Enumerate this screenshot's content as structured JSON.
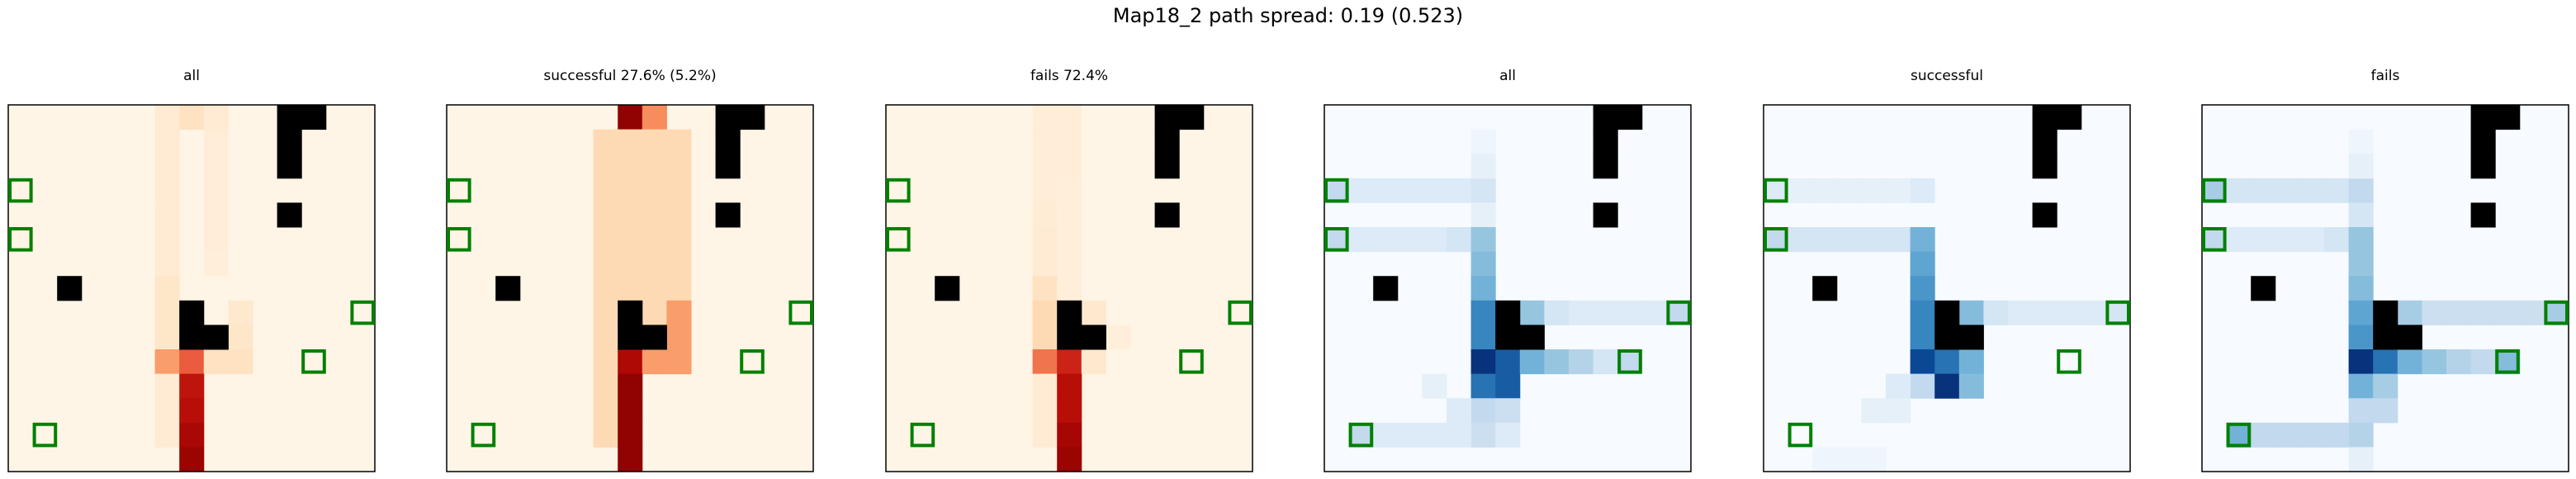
{
  "title": "Map18_2 path spread: 0.19 (0.523)",
  "grid": {
    "cols": 15,
    "rows": 15
  },
  "obstacles": [
    [
      11,
      0
    ],
    [
      12,
      0
    ],
    [
      11,
      1
    ],
    [
      11,
      2
    ],
    [
      11,
      4
    ],
    [
      2,
      7
    ],
    [
      7,
      8
    ],
    [
      7,
      9
    ],
    [
      8,
      9
    ]
  ],
  "goals": [
    [
      0,
      3
    ],
    [
      0,
      5
    ],
    [
      14,
      8
    ],
    [
      12,
      10
    ],
    [
      1,
      13
    ]
  ],
  "colors": {
    "goal_outline": "#008000",
    "obstacle": "#000000",
    "frame": "#000000"
  },
  "chart_data": [
    {
      "type": "heatmap",
      "title": "all",
      "cmap": "OrRd",
      "cells": [
        [
          6,
          0,
          0.08
        ],
        [
          7,
          0,
          0.15
        ],
        [
          8,
          0,
          0.08
        ],
        [
          6,
          1,
          0.08
        ],
        [
          8,
          1,
          0.06
        ],
        [
          6,
          2,
          0.08
        ],
        [
          8,
          2,
          0.06
        ],
        [
          6,
          3,
          0.08
        ],
        [
          8,
          3,
          0.06
        ],
        [
          6,
          4,
          0.08
        ],
        [
          8,
          4,
          0.06
        ],
        [
          6,
          5,
          0.08
        ],
        [
          8,
          5,
          0.06
        ],
        [
          6,
          6,
          0.08
        ],
        [
          8,
          6,
          0.05
        ],
        [
          6,
          7,
          0.12
        ],
        [
          6,
          8,
          0.12
        ],
        [
          9,
          8,
          0.1
        ],
        [
          6,
          9,
          0.12
        ],
        [
          9,
          9,
          0.12
        ],
        [
          6,
          10,
          0.45
        ],
        [
          7,
          10,
          0.6
        ],
        [
          8,
          10,
          0.15
        ],
        [
          9,
          10,
          0.15
        ],
        [
          6,
          11,
          0.08
        ],
        [
          7,
          11,
          0.8
        ],
        [
          6,
          12,
          0.08
        ],
        [
          7,
          12,
          0.82
        ],
        [
          6,
          13,
          0.08
        ],
        [
          7,
          13,
          0.87
        ],
        [
          7,
          14,
          0.92
        ]
      ]
    },
    {
      "type": "heatmap",
      "title": "successful 27.6% (5.2%)",
      "cmap": "OrRd",
      "cells": [
        [
          7,
          0,
          0.95
        ],
        [
          8,
          0,
          0.5
        ],
        [
          6,
          1,
          0.2
        ],
        [
          7,
          1,
          0.2
        ],
        [
          8,
          1,
          0.2
        ],
        [
          9,
          1,
          0.2
        ],
        [
          6,
          2,
          0.2
        ],
        [
          7,
          2,
          0.2
        ],
        [
          8,
          2,
          0.2
        ],
        [
          9,
          2,
          0.2
        ],
        [
          6,
          3,
          0.2
        ],
        [
          7,
          3,
          0.2
        ],
        [
          8,
          3,
          0.2
        ],
        [
          9,
          3,
          0.2
        ],
        [
          6,
          4,
          0.2
        ],
        [
          7,
          4,
          0.2
        ],
        [
          8,
          4,
          0.2
        ],
        [
          9,
          4,
          0.2
        ],
        [
          6,
          5,
          0.2
        ],
        [
          7,
          5,
          0.2
        ],
        [
          8,
          5,
          0.2
        ],
        [
          9,
          5,
          0.2
        ],
        [
          6,
          6,
          0.2
        ],
        [
          7,
          6,
          0.2
        ],
        [
          8,
          6,
          0.2
        ],
        [
          9,
          6,
          0.2
        ],
        [
          6,
          7,
          0.2
        ],
        [
          7,
          7,
          0.2
        ],
        [
          8,
          7,
          0.2
        ],
        [
          9,
          7,
          0.2
        ],
        [
          6,
          8,
          0.2
        ],
        [
          8,
          8,
          0.2
        ],
        [
          9,
          8,
          0.45
        ],
        [
          6,
          9,
          0.2
        ],
        [
          9,
          9,
          0.45
        ],
        [
          6,
          10,
          0.2
        ],
        [
          7,
          10,
          0.85
        ],
        [
          8,
          10,
          0.45
        ],
        [
          9,
          10,
          0.45
        ],
        [
          6,
          11,
          0.2
        ],
        [
          7,
          11,
          0.95
        ],
        [
          6,
          12,
          0.2
        ],
        [
          7,
          12,
          0.95
        ],
        [
          6,
          13,
          0.2
        ],
        [
          7,
          13,
          0.95
        ],
        [
          7,
          14,
          0.95
        ]
      ]
    },
    {
      "type": "heatmap",
      "title": "fails 72.4%",
      "cmap": "OrRd",
      "cells": [
        [
          6,
          0,
          0.06
        ],
        [
          7,
          0,
          0.06
        ],
        [
          6,
          1,
          0.06
        ],
        [
          7,
          1,
          0.06
        ],
        [
          6,
          2,
          0.06
        ],
        [
          7,
          2,
          0.06
        ],
        [
          6,
          3,
          0.06
        ],
        [
          7,
          3,
          0.05
        ],
        [
          6,
          4,
          0.07
        ],
        [
          7,
          4,
          0.05
        ],
        [
          6,
          5,
          0.08
        ],
        [
          7,
          5,
          0.05
        ],
        [
          6,
          6,
          0.08
        ],
        [
          7,
          6,
          0.05
        ],
        [
          6,
          7,
          0.15
        ],
        [
          7,
          7,
          0.05
        ],
        [
          6,
          8,
          0.2
        ],
        [
          8,
          8,
          0.1
        ],
        [
          6,
          9,
          0.2
        ],
        [
          9,
          9,
          0.05
        ],
        [
          6,
          10,
          0.55
        ],
        [
          7,
          10,
          0.75
        ],
        [
          8,
          10,
          0.1
        ],
        [
          6,
          11,
          0.08
        ],
        [
          7,
          11,
          0.82
        ],
        [
          6,
          12,
          0.08
        ],
        [
          7,
          12,
          0.82
        ],
        [
          6,
          13,
          0.08
        ],
        [
          7,
          13,
          0.88
        ],
        [
          7,
          14,
          0.92
        ]
      ]
    },
    {
      "type": "heatmap",
      "title": "all",
      "cmap": "Blues",
      "cells": [
        [
          0,
          3,
          0.3
        ],
        [
          1,
          3,
          0.15
        ],
        [
          2,
          3,
          0.15
        ],
        [
          3,
          3,
          0.15
        ],
        [
          4,
          3,
          0.15
        ],
        [
          5,
          3,
          0.15
        ],
        [
          6,
          3,
          0.2
        ],
        [
          0,
          5,
          0.3
        ],
        [
          1,
          5,
          0.15
        ],
        [
          2,
          5,
          0.15
        ],
        [
          3,
          5,
          0.15
        ],
        [
          4,
          5,
          0.15
        ],
        [
          5,
          5,
          0.2
        ],
        [
          6,
          1,
          0.05
        ],
        [
          6,
          2,
          0.1
        ],
        [
          6,
          4,
          0.1
        ],
        [
          6,
          5,
          0.45
        ],
        [
          6,
          6,
          0.5
        ],
        [
          6,
          7,
          0.55
        ],
        [
          6,
          8,
          0.7
        ],
        [
          6,
          9,
          0.7
        ],
        [
          6,
          10,
          0.95
        ],
        [
          6,
          11,
          0.75
        ],
        [
          6,
          12,
          0.3
        ],
        [
          6,
          13,
          0.25
        ],
        [
          7,
          10,
          0.8
        ],
        [
          8,
          10,
          0.55
        ],
        [
          9,
          10,
          0.45
        ],
        [
          10,
          10,
          0.35
        ],
        [
          11,
          10,
          0.2
        ],
        [
          12,
          10,
          0.3
        ],
        [
          7,
          11,
          0.8
        ],
        [
          7,
          12,
          0.25
        ],
        [
          7,
          13,
          0.15
        ],
        [
          8,
          8,
          0.45
        ],
        [
          9,
          8,
          0.2
        ],
        [
          10,
          8,
          0.15
        ],
        [
          11,
          8,
          0.15
        ],
        [
          12,
          8,
          0.15
        ],
        [
          13,
          8,
          0.15
        ],
        [
          14,
          8,
          0.3
        ],
        [
          5,
          12,
          0.15
        ],
        [
          4,
          11,
          0.1
        ],
        [
          1,
          13,
          0.3
        ],
        [
          2,
          13,
          0.15
        ],
        [
          3,
          13,
          0.15
        ],
        [
          4,
          13,
          0.15
        ],
        [
          5,
          13,
          0.15
        ]
      ]
    },
    {
      "type": "heatmap",
      "title": "successful",
      "cmap": "Blues",
      "cells": [
        [
          0,
          3,
          0.15
        ],
        [
          1,
          3,
          0.1
        ],
        [
          2,
          3,
          0.1
        ],
        [
          3,
          3,
          0.1
        ],
        [
          4,
          3,
          0.1
        ],
        [
          5,
          3,
          0.1
        ],
        [
          6,
          3,
          0.15
        ],
        [
          0,
          5,
          0.3
        ],
        [
          1,
          5,
          0.2
        ],
        [
          2,
          5,
          0.2
        ],
        [
          3,
          5,
          0.2
        ],
        [
          4,
          5,
          0.2
        ],
        [
          5,
          5,
          0.2
        ],
        [
          6,
          5,
          0.55
        ],
        [
          6,
          6,
          0.6
        ],
        [
          6,
          7,
          0.65
        ],
        [
          6,
          8,
          0.7
        ],
        [
          6,
          9,
          0.7
        ],
        [
          6,
          10,
          0.85
        ],
        [
          6,
          11,
          0.3
        ],
        [
          7,
          10,
          0.75
        ],
        [
          8,
          10,
          0.55
        ],
        [
          7,
          11,
          0.95
        ],
        [
          8,
          11,
          0.5
        ],
        [
          8,
          8,
          0.5
        ],
        [
          9,
          8,
          0.2
        ],
        [
          10,
          8,
          0.15
        ],
        [
          11,
          8,
          0.15
        ],
        [
          12,
          8,
          0.15
        ],
        [
          13,
          8,
          0.15
        ],
        [
          14,
          8,
          0.2
        ],
        [
          5,
          11,
          0.15
        ],
        [
          4,
          12,
          0.1
        ],
        [
          5,
          12,
          0.1
        ],
        [
          2,
          14,
          0.05
        ],
        [
          3,
          14,
          0.05
        ],
        [
          4,
          14,
          0.05
        ]
      ]
    },
    {
      "type": "heatmap",
      "title": "fails",
      "cmap": "Blues",
      "cells": [
        [
          0,
          3,
          0.4
        ],
        [
          1,
          3,
          0.2
        ],
        [
          2,
          3,
          0.2
        ],
        [
          3,
          3,
          0.2
        ],
        [
          4,
          3,
          0.2
        ],
        [
          5,
          3,
          0.2
        ],
        [
          6,
          3,
          0.3
        ],
        [
          0,
          5,
          0.3
        ],
        [
          1,
          5,
          0.15
        ],
        [
          2,
          5,
          0.15
        ],
        [
          3,
          5,
          0.15
        ],
        [
          4,
          5,
          0.15
        ],
        [
          5,
          5,
          0.2
        ],
        [
          6,
          1,
          0.05
        ],
        [
          6,
          2,
          0.1
        ],
        [
          6,
          4,
          0.2
        ],
        [
          6,
          5,
          0.45
        ],
        [
          6,
          6,
          0.45
        ],
        [
          6,
          7,
          0.5
        ],
        [
          6,
          8,
          0.6
        ],
        [
          6,
          9,
          0.65
        ],
        [
          6,
          10,
          0.95
        ],
        [
          6,
          11,
          0.55
        ],
        [
          6,
          12,
          0.3
        ],
        [
          6,
          13,
          0.35
        ],
        [
          7,
          10,
          0.75
        ],
        [
          8,
          10,
          0.55
        ],
        [
          9,
          10,
          0.45
        ],
        [
          10,
          10,
          0.35
        ],
        [
          11,
          10,
          0.3
        ],
        [
          12,
          10,
          0.5
        ],
        [
          7,
          11,
          0.4
        ],
        [
          7,
          12,
          0.3
        ],
        [
          8,
          8,
          0.4
        ],
        [
          9,
          8,
          0.25
        ],
        [
          10,
          8,
          0.25
        ],
        [
          11,
          8,
          0.25
        ],
        [
          12,
          8,
          0.25
        ],
        [
          13,
          8,
          0.25
        ],
        [
          14,
          8,
          0.4
        ],
        [
          1,
          13,
          0.55
        ],
        [
          2,
          13,
          0.3
        ],
        [
          3,
          13,
          0.3
        ],
        [
          4,
          13,
          0.3
        ],
        [
          5,
          13,
          0.3
        ],
        [
          6,
          14,
          0.1
        ]
      ]
    }
  ]
}
